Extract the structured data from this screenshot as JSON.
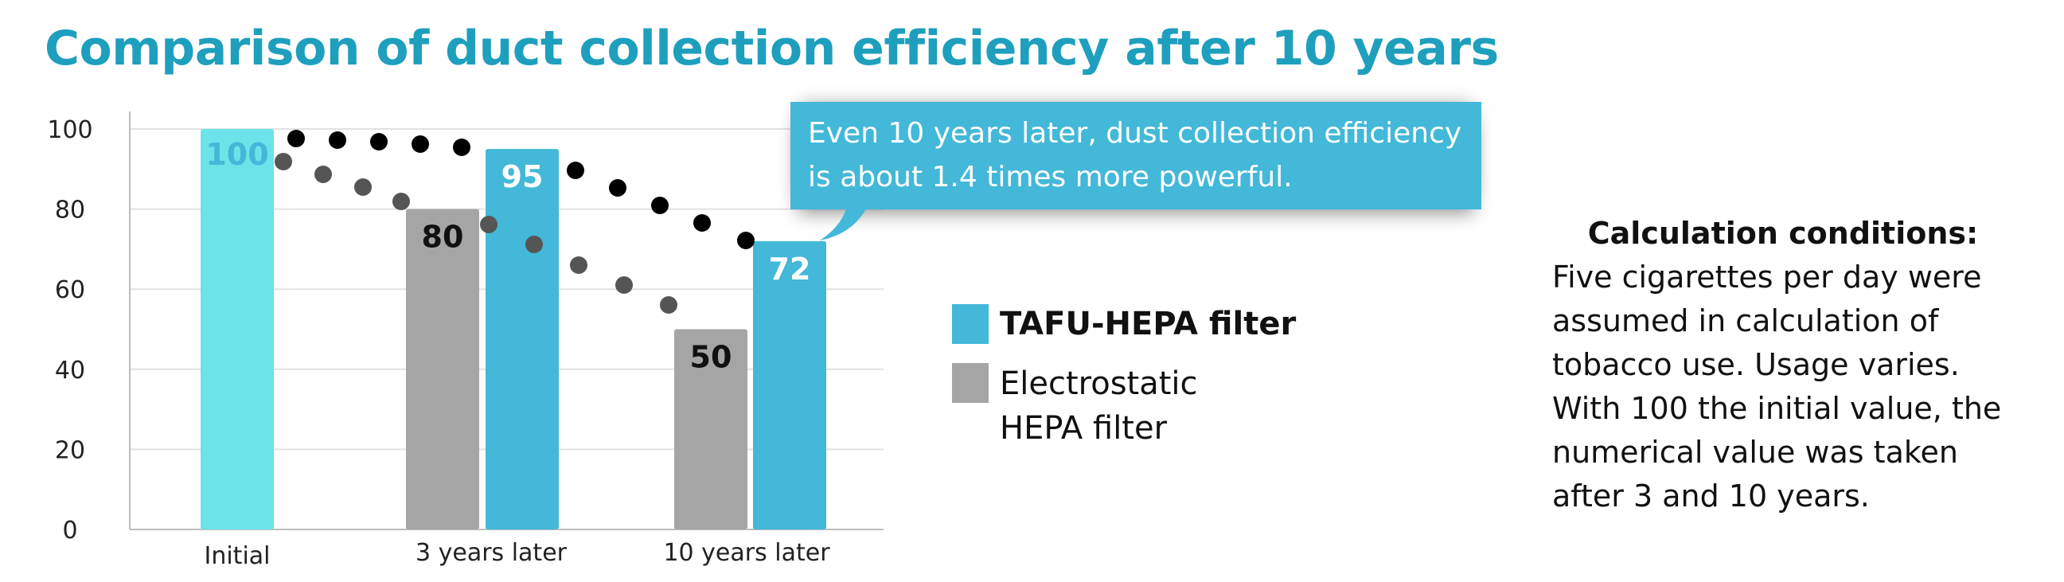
{
  "chart_data": {
    "type": "bar",
    "title": "Comparison of duct collection efficiency after 10 years",
    "categories": [
      "Initial",
      "3 years later",
      "10 years later"
    ],
    "ylim": [
      0,
      100
    ],
    "yticks": [
      0,
      20,
      40,
      60,
      80,
      100
    ],
    "grid": true,
    "series": [
      {
        "name": "TAFU-HEPA filter",
        "color": "#43b8d8",
        "initial_color": "#6be3e8",
        "values": [
          100,
          95,
          72
        ]
      },
      {
        "name": "Electrostatic HEPA filter",
        "color": "#a5a5a5",
        "values": [
          null,
          80,
          50
        ]
      }
    ],
    "data_labels": {
      "initial": "100",
      "tafu": [
        "95",
        "72"
      ],
      "electrostatic": [
        "80",
        "50"
      ]
    },
    "annotation": "Even 10 years later, dust collection efficiency is about 1.4 times more powerful."
  },
  "legend": {
    "tafu": "TAFU-HEPA filter",
    "electrostatic": "Electrostatic HEPA filter"
  },
  "conditions": {
    "title": "Calculation conditions:",
    "body": "Five cigarettes per day were assumed in calculation of tobacco use. Usage varies. With 100 the initial value, the numerical value was taken after 3 and 10 years."
  },
  "colors": {
    "title": "#1e9fbd",
    "tafu": "#43b8d8",
    "initial": "#6be3e8",
    "electrostatic": "#a5a5a5",
    "dots_tafu": "#000000",
    "dots_electrostatic": "#555555"
  }
}
